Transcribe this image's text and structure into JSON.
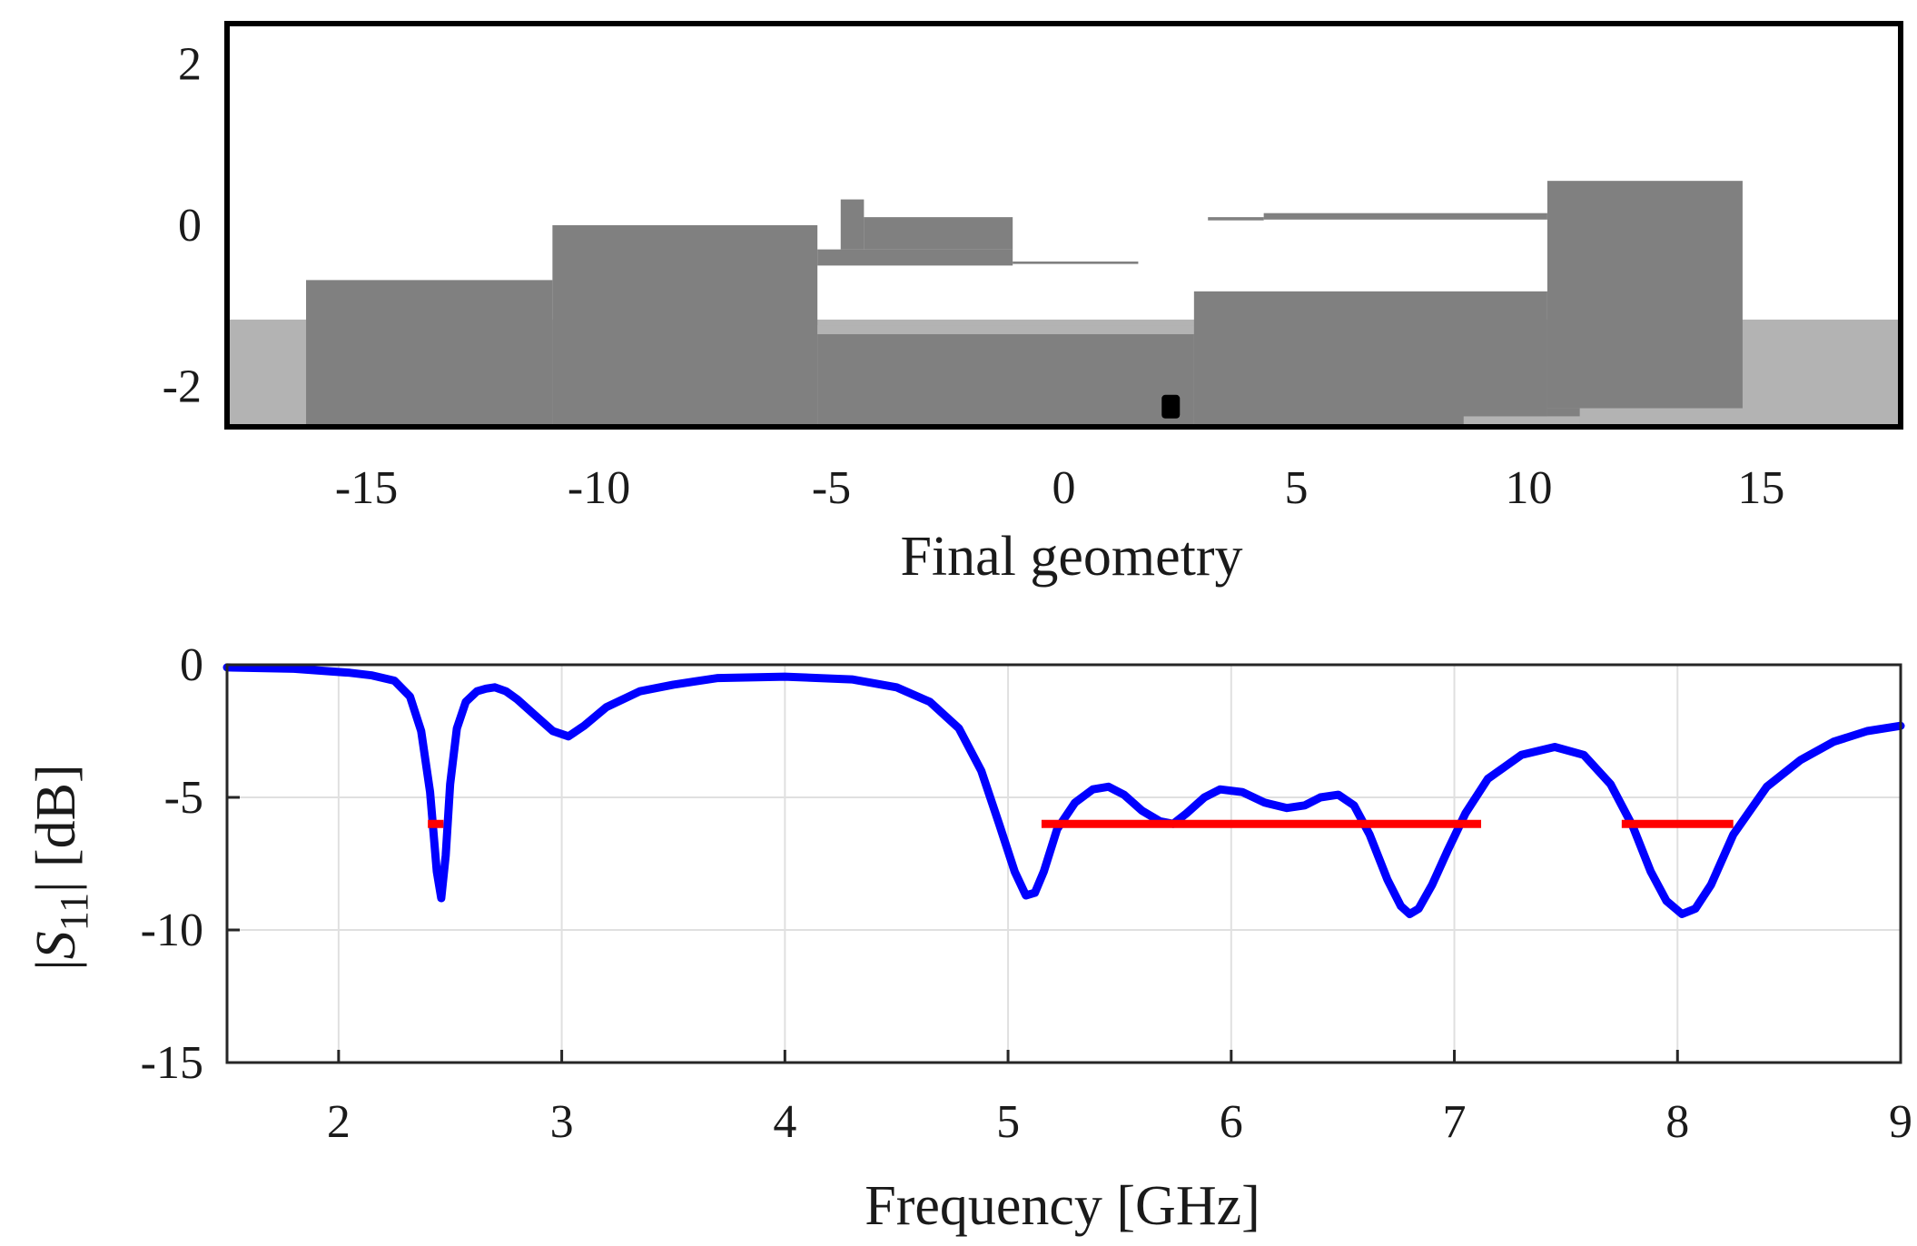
{
  "chart_data": [
    {
      "type": "geometry",
      "xlabel": "Final geometry",
      "xlim": [
        -18,
        18
      ],
      "ylim": [
        -2.5,
        2.5
      ],
      "xticks": [
        -15,
        -10,
        -5,
        0,
        5,
        10,
        15
      ],
      "xtick_labels": [
        "-15",
        "-10",
        "-5",
        "0",
        "5",
        "10",
        "15"
      ],
      "yticks": [
        2,
        0,
        -2
      ],
      "ytick_labels": [
        "2",
        "0",
        "-2"
      ],
      "colors": {
        "substrate": "#b3b3b3",
        "metal": "#808080",
        "slot": "#ffffff",
        "feed": "#000000",
        "frame": "#000000"
      },
      "regions": [
        {
          "name": "substrate",
          "fill": "substrate",
          "x0": -18,
          "x1": 18,
          "y0": -2.5,
          "y1": -1.17
        },
        {
          "name": "metal-left-low",
          "fill": "metal",
          "x0": -16.3,
          "x1": -11,
          "y0": -2.5,
          "y1": -0.68
        },
        {
          "name": "metal-left-mid",
          "fill": "metal",
          "x0": -11,
          "x1": -5.3,
          "y0": -2.5,
          "y1": 0.0
        },
        {
          "name": "metal-center-stub",
          "fill": "metal",
          "x0": -4.8,
          "x1": -4.3,
          "y0": -0.3,
          "y1": 0.32
        },
        {
          "name": "metal-center-strip",
          "fill": "metal",
          "x0": -4.3,
          "x1": -1.1,
          "y0": -0.3,
          "y1": 0.1
        },
        {
          "name": "metal-center-thin",
          "fill": "metal",
          "x0": -1.1,
          "x1": 1.6,
          "y0": -0.48,
          "y1": -0.45
        },
        {
          "name": "metal-center-bridge",
          "fill": "metal",
          "x0": -5.3,
          "x1": -1.1,
          "y0": -0.5,
          "y1": -0.3
        },
        {
          "name": "metal-center-base",
          "fill": "metal",
          "x0": -5.3,
          "x1": 2.8,
          "y0": -2.5,
          "y1": -1.35
        },
        {
          "name": "substrate-center-band",
          "fill": "substrate",
          "x0": -5.3,
          "x1": 2.8,
          "y0": -1.35,
          "y1": -1.24
        },
        {
          "name": "metal-right-mid",
          "fill": "metal",
          "x0": 2.8,
          "x1": 10.4,
          "y0": -2.5,
          "y1": -0.82
        },
        {
          "name": "metal-right-top-thin",
          "fill": "metal",
          "x0": 3.1,
          "x1": 4.3,
          "y0": 0.06,
          "y1": 0.1
        },
        {
          "name": "metal-right-top",
          "fill": "metal",
          "x0": 4.3,
          "x1": 10.4,
          "y0": 0.07,
          "y1": 0.15
        },
        {
          "name": "metal-right-high",
          "fill": "metal",
          "x0": 10.4,
          "x1": 14.6,
          "y0": -2.27,
          "y1": 0.55
        },
        {
          "name": "metal-right-high-foot",
          "fill": "metal",
          "x0": 10.4,
          "x1": 11.1,
          "y0": -2.37,
          "y1": -2.27
        },
        {
          "name": "substrate-notch",
          "fill": "substrate",
          "x0": 8.6,
          "x1": 11.1,
          "y0": -2.5,
          "y1": -2.37
        },
        {
          "name": "substrate-notch-step",
          "fill": "substrate",
          "x0": 11.1,
          "x1": 14.6,
          "y0": -2.5,
          "y1": -2.27
        }
      ],
      "feed_point": {
        "x": 2.3,
        "y": -2.25
      }
    },
    {
      "type": "line",
      "xlabel": "Frequency [GHz]",
      "ylabel_parts": {
        "pre": "|",
        "symbol": "S",
        "subscript": "11",
        "post": "| [dB]"
      },
      "xlim": [
        1.5,
        9
      ],
      "ylim": [
        -15,
        0
      ],
      "xticks": [
        2,
        3,
        4,
        5,
        6,
        7,
        8,
        9
      ],
      "xtick_labels": [
        "2",
        "3",
        "4",
        "5",
        "6",
        "7",
        "8",
        "9"
      ],
      "yticks": [
        0,
        -5,
        -10,
        -15
      ],
      "ytick_labels": [
        "0",
        "-5",
        "-10",
        "-15"
      ],
      "grid": true,
      "colors": {
        "curve": "#0000ff",
        "spec": "#ff0000",
        "grid": "#e0e0e0"
      },
      "series": [
        {
          "name": "S11",
          "x": [
            1.5,
            1.8,
            2.05,
            2.15,
            2.25,
            2.32,
            2.37,
            2.41,
            2.44,
            2.46,
            2.48,
            2.5,
            2.53,
            2.57,
            2.62,
            2.66,
            2.7,
            2.75,
            2.8,
            2.88,
            2.96,
            3.03,
            3.1,
            3.2,
            3.35,
            3.5,
            3.7,
            4.0,
            4.3,
            4.5,
            4.65,
            4.78,
            4.88,
            4.96,
            5.03,
            5.08,
            5.12,
            5.16,
            5.22,
            5.3,
            5.38,
            5.45,
            5.52,
            5.6,
            5.68,
            5.74,
            5.8,
            5.88,
            5.95,
            6.05,
            6.15,
            6.25,
            6.33,
            6.4,
            6.48,
            6.55,
            6.62,
            6.7,
            6.76,
            6.8,
            6.84,
            6.9,
            6.97,
            7.05,
            7.15,
            7.3,
            7.45,
            7.58,
            7.7,
            7.8,
            7.88,
            7.95,
            8.02,
            8.08,
            8.15,
            8.25,
            8.4,
            8.55,
            8.7,
            8.85,
            9.0
          ],
          "y": [
            -0.1,
            -0.15,
            -0.3,
            -0.4,
            -0.6,
            -1.2,
            -2.5,
            -4.8,
            -7.8,
            -8.8,
            -7.2,
            -4.5,
            -2.4,
            -1.4,
            -1.0,
            -0.9,
            -0.85,
            -1.0,
            -1.3,
            -1.9,
            -2.5,
            -2.7,
            -2.3,
            -1.6,
            -1.0,
            -0.75,
            -0.5,
            -0.45,
            -0.55,
            -0.85,
            -1.4,
            -2.4,
            -4.0,
            -6.0,
            -7.8,
            -8.7,
            -8.6,
            -7.8,
            -6.2,
            -5.2,
            -4.7,
            -4.6,
            -4.9,
            -5.5,
            -5.9,
            -6.0,
            -5.6,
            -5.0,
            -4.7,
            -4.8,
            -5.2,
            -5.4,
            -5.3,
            -5.0,
            -4.9,
            -5.3,
            -6.4,
            -8.1,
            -9.1,
            -9.4,
            -9.2,
            -8.3,
            -7.0,
            -5.6,
            -4.3,
            -3.4,
            -3.1,
            -3.4,
            -4.5,
            -6.1,
            -7.8,
            -8.9,
            -9.4,
            -9.2,
            -8.3,
            -6.4,
            -4.6,
            -3.6,
            -2.9,
            -2.5,
            -2.3
          ]
        }
      ],
      "spec_lines": [
        {
          "x0": 2.4,
          "x1": 2.47,
          "y": -6
        },
        {
          "x0": 5.15,
          "x1": 7.12,
          "y": -6
        },
        {
          "x0": 7.75,
          "x1": 8.25,
          "y": -6
        }
      ]
    }
  ]
}
